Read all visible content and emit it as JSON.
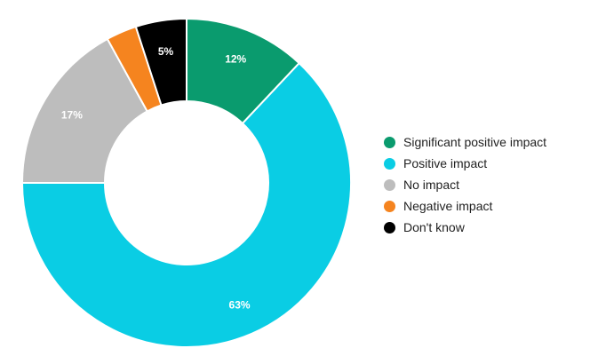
{
  "chart_data": {
    "type": "pie",
    "variant": "donut",
    "title": "",
    "categories": [
      "Significant positive impact",
      "Positive impact",
      "No impact",
      "Negative impact",
      "Don't know"
    ],
    "values": [
      12,
      63,
      17,
      3,
      5
    ],
    "data_labels": [
      "12%",
      "63%",
      "17%",
      "",
      "5%"
    ],
    "colors": [
      "#0a9b6e",
      "#0acde4",
      "#bdbdbd",
      "#f5841f",
      "#000000"
    ],
    "legend_position": "right"
  }
}
